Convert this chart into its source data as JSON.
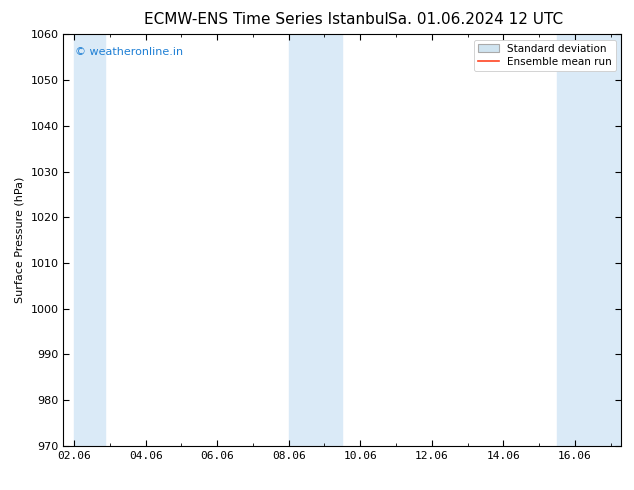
{
  "title_left": "ECMW-ENS Time Series Istanbul",
  "title_right": "Sa. 01.06.2024 12 UTC",
  "ylabel": "Surface Pressure (hPa)",
  "ylim": [
    970,
    1060
  ],
  "yticks": [
    970,
    980,
    990,
    1000,
    1010,
    1020,
    1030,
    1040,
    1050,
    1060
  ],
  "xlim_start": 1.7,
  "xlim_end": 17.3,
  "xtick_labels": [
    "02.06",
    "04.06",
    "06.06",
    "08.06",
    "10.06",
    "12.06",
    "14.06",
    "16.06"
  ],
  "xtick_positions": [
    2,
    4,
    6,
    8,
    10,
    12,
    14,
    16
  ],
  "shaded_bands": [
    {
      "x_start": 2.0,
      "x_end": 2.85
    },
    {
      "x_start": 8.0,
      "x_end": 9.5
    },
    {
      "x_start": 15.5,
      "x_end": 17.3
    }
  ],
  "shade_color": "#daeaf7",
  "watermark_text": "© weatheronline.in",
  "watermark_color": "#1e7fd4",
  "legend_std_label": "Standard deviation",
  "legend_mean_label": "Ensemble mean run",
  "legend_std_facecolor": "#d0e4f0",
  "legend_std_edgecolor": "#aaaaaa",
  "legend_mean_color": "#ff4422",
  "bg_color": "#ffffff",
  "title_fontsize": 11,
  "ylabel_fontsize": 8,
  "tick_fontsize": 8,
  "legend_fontsize": 7.5,
  "watermark_fontsize": 8
}
